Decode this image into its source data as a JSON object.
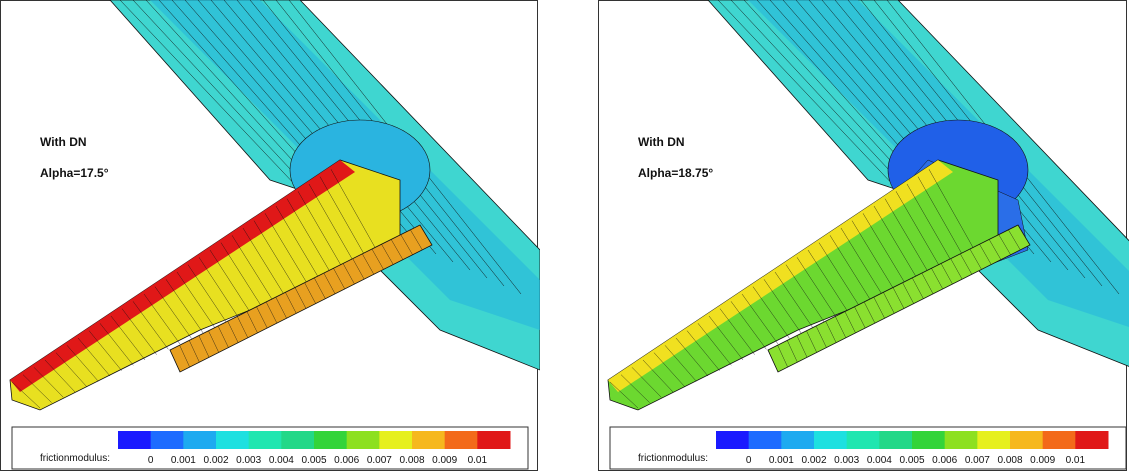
{
  "panels": [
    {
      "label": "With DN",
      "alpha": "Alpha=17.5°",
      "colorbar": {
        "title": "frictionmodulus:",
        "ticks": [
          "0",
          "0.001",
          "0.002",
          "0.003",
          "0.004",
          "0.005",
          "0.006",
          "0.007",
          "0.008",
          "0.009",
          "0.01"
        ]
      }
    },
    {
      "label": "With DN",
      "alpha": "Alpha=18.75°",
      "colorbar": {
        "title": "frictionmodulus:",
        "ticks": [
          "0",
          "0.001",
          "0.002",
          "0.003",
          "0.004",
          "0.005",
          "0.006",
          "0.007",
          "0.008",
          "0.009",
          "0.01"
        ]
      }
    }
  ]
}
